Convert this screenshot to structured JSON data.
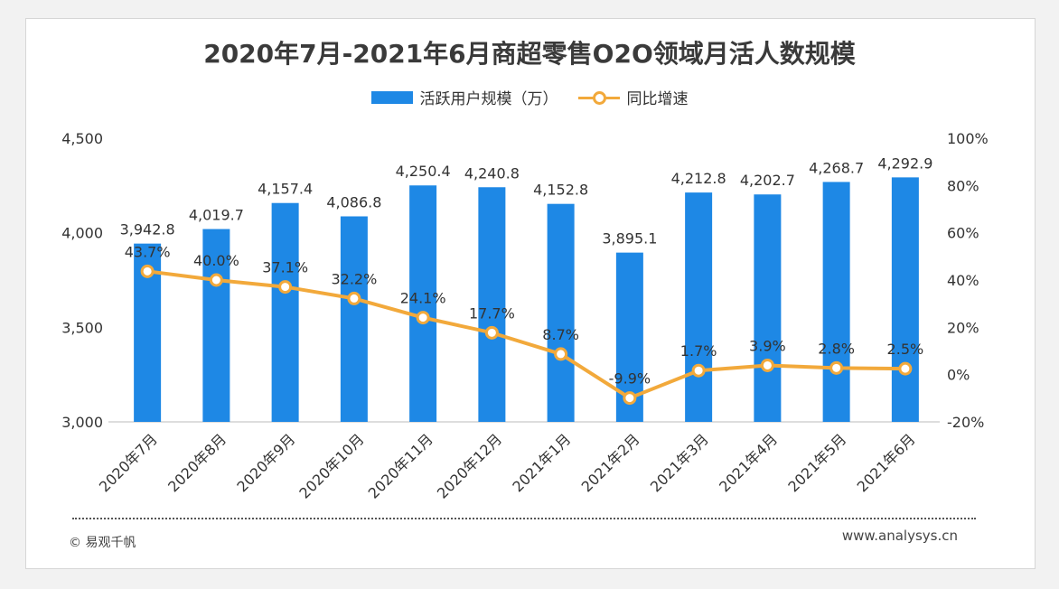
{
  "title": "2020年7月-2021年6月商超零售O2O领域月活人数规模",
  "footer": {
    "copyright": "© 易观千帆",
    "website": "www.analysys.cn"
  },
  "colors": {
    "bar": "#1e88e5",
    "line": "#f2a93b"
  },
  "chart_data": {
    "type": "bar",
    "title": "2020年7月-2021年6月商超零售O2O领域月活人数规模",
    "categories": [
      "2020年7月",
      "2020年8月",
      "2020年9月",
      "2020年10月",
      "2020年11月",
      "2020年12月",
      "2021年1月",
      "2021年2月",
      "2021年3月",
      "2021年4月",
      "2021年5月",
      "2021年6月"
    ],
    "series": [
      {
        "name": "活跃用户规模（万）",
        "type": "bar",
        "axis": "left",
        "values": [
          3942.8,
          4019.7,
          4157.4,
          4086.8,
          4250.4,
          4240.8,
          4152.8,
          3895.1,
          4212.8,
          4202.7,
          4268.7,
          4292.9
        ],
        "labels": [
          "3,942.8",
          "4,019.7",
          "4,157.4",
          "4,086.8",
          "4,250.4",
          "4,240.8",
          "4,152.8",
          "3,895.1",
          "4,212.8",
          "4,202.7",
          "4,268.7",
          "4,292.9"
        ]
      },
      {
        "name": "同比增速",
        "type": "line",
        "axis": "right",
        "values": [
          43.7,
          40.0,
          37.1,
          32.2,
          24.1,
          17.7,
          8.7,
          -9.9,
          1.7,
          3.9,
          2.8,
          2.5
        ],
        "labels": [
          "43.7%",
          "40.0%",
          "37.1%",
          "32.2%",
          "24.1%",
          "17.7%",
          "8.7%",
          "-9.9%",
          "1.7%",
          "3.9%",
          "2.8%",
          "2.5%"
        ]
      }
    ],
    "y_left": {
      "min": 3000,
      "max": 4500,
      "ticks": [
        3000,
        3500,
        4000,
        4500
      ],
      "tick_labels": [
        "3,000",
        "3,500",
        "4,000",
        "4,500"
      ]
    },
    "y_right": {
      "min": -20,
      "max": 100,
      "ticks": [
        -20,
        0,
        20,
        40,
        60,
        80,
        100
      ],
      "tick_labels": [
        "-20%",
        "0%",
        "20%",
        "40%",
        "60%",
        "80%",
        "100%"
      ]
    },
    "legend_position": "top-center",
    "grid": false
  }
}
